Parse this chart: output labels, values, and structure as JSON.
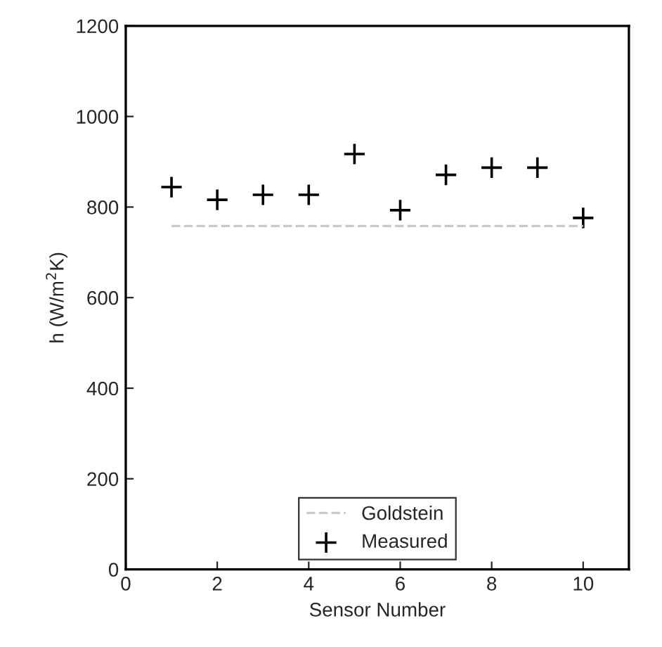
{
  "chart_data": {
    "type": "scatter",
    "xlabel": "Sensor Number",
    "ylabel": "h (W/m$^{2}$K)",
    "xlim": [
      0,
      11
    ],
    "xticks": [
      0,
      2,
      4,
      6,
      8,
      10
    ],
    "ylim": [
      0,
      1200
    ],
    "yticks": [
      0,
      200,
      400,
      600,
      800,
      1000,
      1200
    ],
    "grid": false,
    "legend": "bottom",
    "series": [
      {
        "name": "Goldstein",
        "type": "line",
        "color": "#c8c8c8",
        "line_style": "dashed",
        "marker": "none",
        "x": [
          1,
          10
        ],
        "values": [
          758,
          758
        ]
      },
      {
        "name": "Measured",
        "type": "scatter",
        "color": "#000000",
        "marker": "cross",
        "x": [
          1,
          2,
          3,
          4,
          5,
          6,
          7,
          8,
          9,
          10
        ],
        "values": [
          844,
          816,
          827,
          827,
          917,
          793,
          871,
          887,
          887,
          776
        ]
      }
    ]
  }
}
